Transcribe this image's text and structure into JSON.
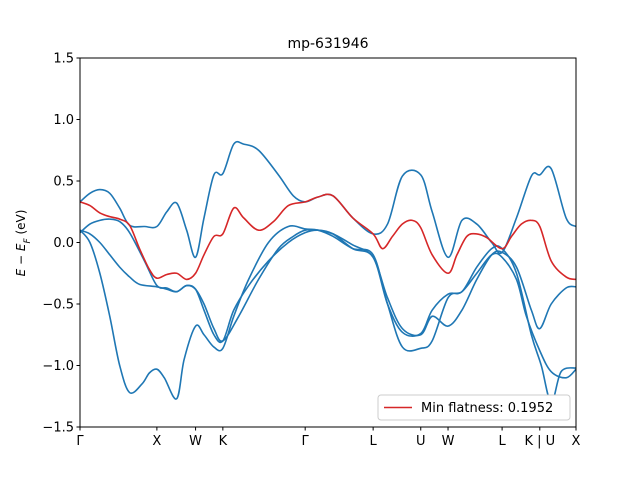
{
  "chart_data": {
    "type": "line",
    "title": "mp-631946",
    "xlabel": "",
    "ylabel": "E − E_F (eV)",
    "ylabel_main": "E − E",
    "ylabel_sub": "F",
    "ylabel_unit": " (eV)",
    "xlim": [
      0,
      1
    ],
    "ylim": [
      -1.5,
      1.5
    ],
    "y_ticks": [
      -1.5,
      -1.0,
      -0.5,
      0.0,
      0.5,
      1.0,
      1.5
    ],
    "y_tick_labels": [
      "−1.5",
      "−1.0",
      "−0.5",
      "0.0",
      "0.5",
      "1.0",
      "1.5"
    ],
    "x_ticks": [
      {
        "pos": 0.0,
        "label": "Γ"
      },
      {
        "pos": 0.155,
        "label": "X"
      },
      {
        "pos": 0.233,
        "label": "W"
      },
      {
        "pos": 0.288,
        "label": "K"
      },
      {
        "pos": 0.454,
        "label": "Γ"
      },
      {
        "pos": 0.591,
        "label": "L"
      },
      {
        "pos": 0.687,
        "label": "U"
      },
      {
        "pos": 0.742,
        "label": "W"
      },
      {
        "pos": 0.851,
        "label": "L"
      },
      {
        "pos": 0.927,
        "label": "K | U"
      },
      {
        "pos": 1.0,
        "label": "X"
      }
    ],
    "grid": false,
    "legend": {
      "position": "bottom-right",
      "entries": [
        {
          "label": "Min flatness: 0.1952",
          "color": "#d62728"
        }
      ]
    },
    "colors": {
      "bands": "#1f77b4",
      "flat_band": "#d62728"
    },
    "series": [
      {
        "color": "#1f77b4",
        "x": [
          0,
          0.02,
          0.04,
          0.06,
          0.08,
          0.1,
          0.12,
          0.155,
          0.175,
          0.195,
          0.215,
          0.233,
          0.25,
          0.27,
          0.288,
          0.32,
          0.36,
          0.4,
          0.43,
          0.454,
          0.48,
          0.51,
          0.55,
          0.591,
          0.62,
          0.65,
          0.687,
          0.71,
          0.742,
          0.77,
          0.8,
          0.83,
          0.851,
          0.88,
          0.91,
          0.927,
          0.95,
          0.98,
          1.0
        ],
        "y": [
          0.1,
          0.07,
          0.0,
          -0.1,
          -0.2,
          -0.28,
          -0.34,
          -0.36,
          -0.38,
          -0.4,
          -0.35,
          -0.38,
          -0.5,
          -0.7,
          -0.8,
          -0.6,
          -0.3,
          -0.05,
          0.05,
          0.1,
          0.1,
          0.07,
          -0.02,
          -0.12,
          -0.45,
          -0.7,
          -0.75,
          -0.6,
          -0.68,
          -0.55,
          -0.3,
          -0.1,
          -0.08,
          -0.2,
          -0.55,
          -0.7,
          -0.5,
          -0.37,
          -0.36
        ]
      },
      {
        "color": "#1f77b4",
        "x": [
          0,
          0.02,
          0.04,
          0.06,
          0.08,
          0.1,
          0.125,
          0.14,
          0.155,
          0.17,
          0.195,
          0.21,
          0.233,
          0.25,
          0.27,
          0.288,
          0.31,
          0.34,
          0.38,
          0.42,
          0.454,
          0.48,
          0.51,
          0.55,
          0.591,
          0.62,
          0.65,
          0.687,
          0.71,
          0.742,
          0.77,
          0.8,
          0.83,
          0.851,
          0.88,
          0.9,
          0.927,
          0.95,
          0.98,
          1.0
        ],
        "y": [
          0.1,
          0.0,
          -0.25,
          -0.6,
          -1.0,
          -1.22,
          -1.15,
          -1.06,
          -1.03,
          -1.1,
          -1.27,
          -0.95,
          -0.68,
          -0.75,
          -0.85,
          -0.86,
          -0.6,
          -0.3,
          0.0,
          0.13,
          0.11,
          0.1,
          0.05,
          -0.05,
          -0.1,
          -0.5,
          -0.85,
          -0.86,
          -0.8,
          -0.45,
          -0.4,
          -0.25,
          -0.1,
          -0.12,
          -0.3,
          -0.6,
          -0.88,
          -1.05,
          -1.1,
          -1.03
        ]
      },
      {
        "color": "#1f77b4",
        "x": [
          0,
          0.02,
          0.04,
          0.06,
          0.08,
          0.1,
          0.13,
          0.155,
          0.175,
          0.195,
          0.215,
          0.233,
          0.25,
          0.27,
          0.288,
          0.31,
          0.33,
          0.36,
          0.4,
          0.43,
          0.454,
          0.48,
          0.51,
          0.55,
          0.591,
          0.62,
          0.65,
          0.687,
          0.71,
          0.742,
          0.77,
          0.8,
          0.83,
          0.851,
          0.88,
          0.91,
          0.927,
          0.95,
          0.98,
          1.0
        ],
        "y": [
          0.33,
          0.4,
          0.43,
          0.4,
          0.28,
          0.14,
          0.13,
          0.13,
          0.25,
          0.32,
          0.1,
          -0.12,
          0.2,
          0.55,
          0.56,
          0.8,
          0.8,
          0.75,
          0.55,
          0.38,
          0.33,
          0.37,
          0.38,
          0.2,
          0.07,
          0.15,
          0.54,
          0.55,
          0.25,
          -0.12,
          0.18,
          0.15,
          0.0,
          -0.08,
          0.2,
          0.54,
          0.55,
          0.6,
          0.2,
          0.13
        ]
      },
      {
        "color": "#1f77b4",
        "x": [
          0,
          0.02,
          0.04,
          0.06,
          0.08,
          0.1,
          0.13,
          0.155,
          0.175,
          0.195,
          0.215,
          0.233,
          0.25,
          0.27,
          0.288,
          0.31,
          0.34,
          0.38,
          0.42,
          0.454,
          0.48,
          0.51,
          0.55,
          0.591,
          0.62,
          0.65,
          0.687,
          0.71,
          0.742,
          0.77,
          0.8,
          0.83,
          0.851,
          0.88,
          0.91,
          0.93,
          0.95,
          0.97,
          1.0
        ],
        "y": [
          0.08,
          0.15,
          0.18,
          0.19,
          0.17,
          0.08,
          -0.15,
          -0.35,
          -0.37,
          -0.4,
          -0.35,
          -0.38,
          -0.55,
          -0.75,
          -0.8,
          -0.55,
          -0.35,
          -0.15,
          0.0,
          0.08,
          0.1,
          0.07,
          -0.05,
          -0.12,
          -0.5,
          -0.73,
          -0.74,
          -0.55,
          -0.42,
          -0.4,
          -0.2,
          -0.05,
          -0.05,
          -0.25,
          -0.75,
          -1.0,
          -1.3,
          -1.05,
          -1.02
        ]
      },
      {
        "color": "#d62728",
        "x": [
          0,
          0.02,
          0.04,
          0.06,
          0.08,
          0.1,
          0.12,
          0.14,
          0.155,
          0.175,
          0.195,
          0.215,
          0.233,
          0.25,
          0.27,
          0.288,
          0.31,
          0.33,
          0.36,
          0.39,
          0.42,
          0.454,
          0.48,
          0.51,
          0.55,
          0.591,
          0.61,
          0.63,
          0.65,
          0.67,
          0.687,
          0.71,
          0.742,
          0.76,
          0.78,
          0.8,
          0.82,
          0.851,
          0.87,
          0.89,
          0.91,
          0.927,
          0.95,
          0.98,
          1.0
        ],
        "y": [
          0.33,
          0.3,
          0.24,
          0.21,
          0.19,
          0.14,
          -0.05,
          -0.22,
          -0.29,
          -0.26,
          -0.25,
          -0.3,
          -0.25,
          -0.1,
          0.05,
          0.07,
          0.28,
          0.2,
          0.1,
          0.17,
          0.3,
          0.33,
          0.37,
          0.38,
          0.2,
          0.07,
          -0.05,
          0.05,
          0.15,
          0.18,
          0.12,
          -0.1,
          -0.25,
          -0.1,
          0.05,
          0.07,
          0.04,
          -0.05,
          0.05,
          0.15,
          0.18,
          0.13,
          -0.15,
          -0.28,
          -0.3
        ]
      }
    ]
  }
}
